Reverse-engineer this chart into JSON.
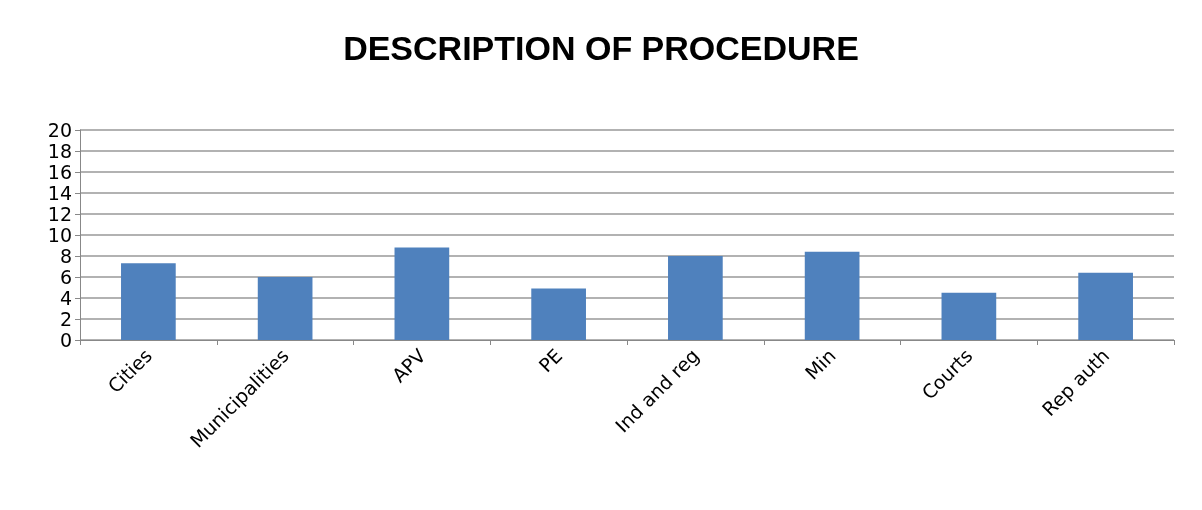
{
  "chart_data": {
    "type": "bar",
    "title": "DESCRIPTION OF PROCEDURE",
    "categories": [
      "Cities",
      "Municipalities",
      "APV",
      "PE",
      "Ind and reg",
      "Min",
      "Courts",
      "Rep auth"
    ],
    "values": [
      7.3,
      6.0,
      8.8,
      4.9,
      8.0,
      8.4,
      4.5,
      6.4
    ],
    "color": "#4f81bd",
    "ylim": [
      0,
      20
    ],
    "yticks": [
      0,
      2,
      4,
      6,
      8,
      10,
      12,
      14,
      16,
      18,
      20
    ],
    "grid": "y"
  }
}
